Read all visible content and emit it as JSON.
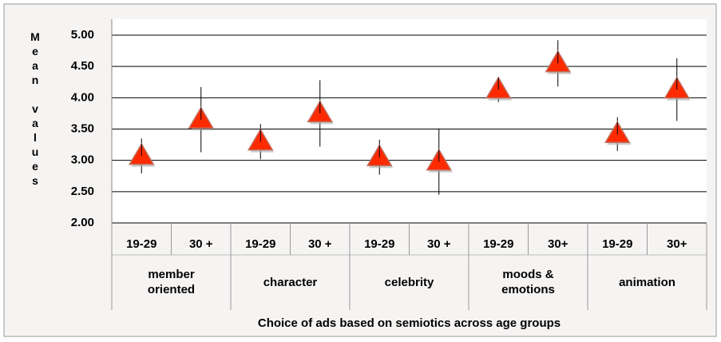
{
  "chart_data": {
    "type": "errorbar",
    "x_label": "Choice of ads based on semiotics across age groups",
    "y_label": "Mean values",
    "groups": [
      "member oriented",
      "character",
      "celebrity",
      "moods & emotions",
      "animation"
    ],
    "categories": [
      "19-29",
      "30 +",
      "19-29",
      "30 +",
      "19-29",
      "30 +",
      "19-29",
      "30+",
      "19-29",
      "30+"
    ],
    "values": [
      3.07,
      3.65,
      3.3,
      3.75,
      3.05,
      2.98,
      4.13,
      4.55,
      3.42,
      4.13
    ],
    "errors": [
      0.28,
      0.52,
      0.28,
      0.53,
      0.28,
      0.53,
      0.2,
      0.37,
      0.27,
      0.5
    ],
    "color": "#ff2a00",
    "ylim": [
      2,
      5
    ],
    "yticks": [
      {
        "value": 2,
        "label": "2.00"
      },
      {
        "value": 2.5,
        "label": "2.50"
      },
      {
        "value": 3,
        "label": "3.00"
      },
      {
        "value": 3.5,
        "label": "3.50"
      },
      {
        "value": 4,
        "label": "4.00"
      },
      {
        "value": 4.5,
        "label": "4.50"
      },
      {
        "value": 5,
        "label": "5.00"
      }
    ],
    "grid": true
  }
}
